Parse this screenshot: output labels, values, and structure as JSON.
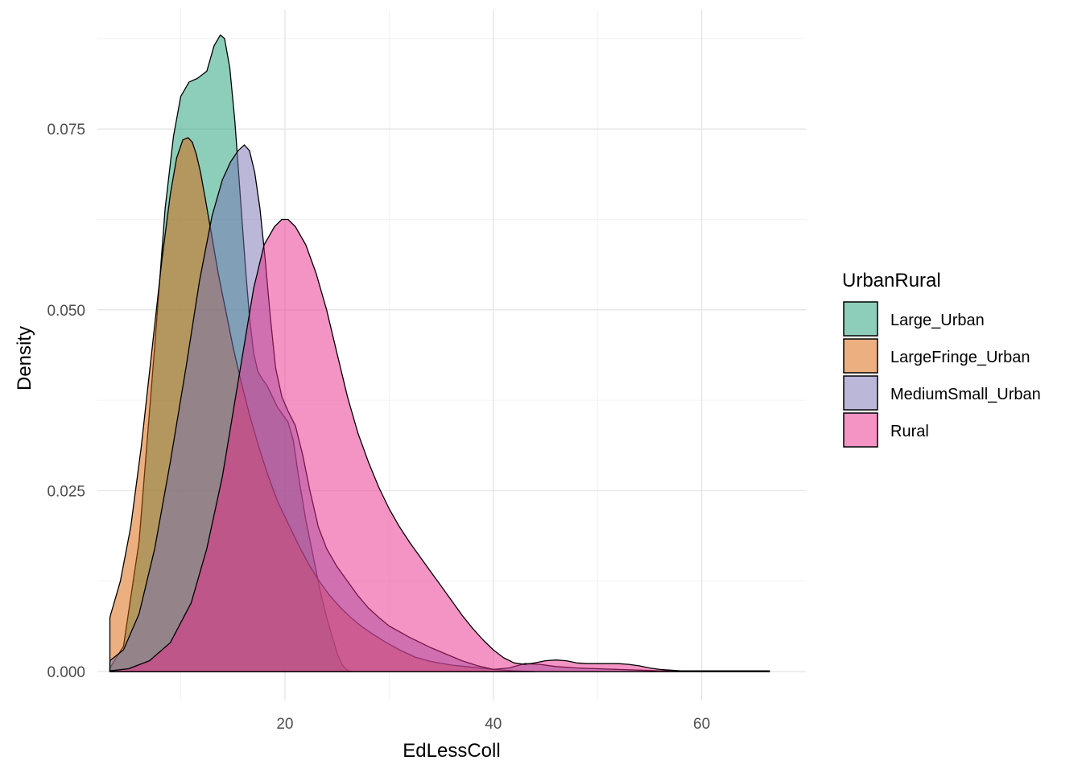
{
  "chart_data": {
    "type": "area",
    "xlabel": "EdLessColl",
    "ylabel": "Density",
    "xlim": [
      2,
      70
    ],
    "ylim": [
      -0.004,
      0.0915
    ],
    "x_ticks": [
      20,
      40,
      60
    ],
    "x_tick_labels": [
      "20",
      "40",
      "60"
    ],
    "y_ticks": [
      0.0,
      0.025,
      0.05,
      0.075
    ],
    "y_tick_labels": [
      "0.000",
      "0.025",
      "0.050",
      "0.075"
    ],
    "grid": true,
    "legend": {
      "title": "UrbanRural",
      "placement": "right"
    },
    "fill_opacity": 0.5,
    "series": [
      {
        "name": "Large_Urban",
        "color": "#1B9E77",
        "x": [
          3.2,
          4.5,
          6,
          7.5,
          8.5,
          9.3,
          10,
          10.8,
          11.6,
          12.5,
          13.2,
          13.8,
          14.2,
          14.7,
          15.2,
          15.7,
          16.2,
          16.6,
          17.0,
          17.4,
          17.8,
          18.3,
          18.8,
          19.3,
          19.8,
          20.3,
          20.8,
          21.3,
          22,
          22.7,
          23.4,
          24,
          24.6,
          25.1,
          25.5,
          25.8,
          26.1,
          26.4
        ],
        "y": [
          0.0005,
          0.0035,
          0.018,
          0.045,
          0.064,
          0.074,
          0.0795,
          0.0815,
          0.082,
          0.083,
          0.0865,
          0.088,
          0.0875,
          0.0835,
          0.076,
          0.066,
          0.056,
          0.049,
          0.044,
          0.0415,
          0.0405,
          0.0395,
          0.038,
          0.0365,
          0.0355,
          0.0345,
          0.032,
          0.027,
          0.021,
          0.016,
          0.011,
          0.0075,
          0.0045,
          0.0022,
          0.001,
          0.0004,
          0.0001,
          0.0
        ]
      },
      {
        "name": "LargeFringe_Urban",
        "color": "#D95F02",
        "x": [
          3.2,
          4.2,
          5.2,
          6.2,
          7.2,
          8.2,
          9.0,
          9.6,
          10.2,
          10.7,
          11.1,
          11.5,
          11.9,
          12.4,
          13.0,
          13.6,
          14.3,
          15.0,
          15.8,
          16.6,
          17.5,
          18.4,
          19.3,
          20.3,
          21.3,
          22.3,
          23.3,
          24.3,
          25.3,
          26.3,
          27.3,
          28.3,
          29.5,
          31,
          32.5,
          34,
          36,
          38,
          40,
          42,
          44
        ],
        "y": [
          0.0075,
          0.0125,
          0.02,
          0.031,
          0.044,
          0.057,
          0.066,
          0.071,
          0.0735,
          0.0738,
          0.0732,
          0.0715,
          0.069,
          0.065,
          0.06,
          0.055,
          0.05,
          0.045,
          0.04,
          0.0355,
          0.031,
          0.027,
          0.0235,
          0.0205,
          0.0175,
          0.0148,
          0.0125,
          0.0105,
          0.0089,
          0.0075,
          0.0063,
          0.0053,
          0.0042,
          0.003,
          0.002,
          0.0014,
          0.0009,
          0.0006,
          0.0003,
          0.0001,
          0.0
        ]
      },
      {
        "name": "MediumSmall_Urban",
        "color": "#7570B3",
        "x": [
          3.2,
          4.5,
          6,
          7.5,
          9,
          10.5,
          11.8,
          13,
          14,
          14.8,
          15.5,
          16.1,
          16.6,
          17.1,
          17.6,
          18.1,
          18.6,
          19.1,
          19.7,
          20.3,
          21,
          21.7,
          22.4,
          23.2,
          24,
          25,
          26,
          27,
          28,
          29,
          30,
          31,
          32,
          33,
          34,
          35.5,
          37,
          38.5,
          40,
          41.5,
          43,
          44.5,
          46,
          48,
          50,
          52,
          54,
          56,
          58,
          60,
          62,
          64,
          66.5
        ],
        "y": [
          0.0015,
          0.003,
          0.008,
          0.017,
          0.029,
          0.042,
          0.054,
          0.063,
          0.068,
          0.0705,
          0.072,
          0.0728,
          0.072,
          0.069,
          0.064,
          0.057,
          0.049,
          0.042,
          0.038,
          0.036,
          0.034,
          0.03,
          0.025,
          0.02,
          0.017,
          0.0145,
          0.0125,
          0.0105,
          0.0088,
          0.0075,
          0.0063,
          0.0055,
          0.0047,
          0.004,
          0.0033,
          0.0024,
          0.0015,
          0.0008,
          0.0003,
          0.0005,
          0.0011,
          0.001,
          0.0007,
          0.0005,
          0.0004,
          0.0003,
          0.0002,
          0.0001,
          0.0001,
          0.0001,
          0.0001,
          0.0001,
          0.0001
        ]
      },
      {
        "name": "Rural",
        "color": "#E7298A",
        "x": [
          3.2,
          5,
          7,
          9,
          11,
          12.5,
          14,
          15.5,
          17,
          18,
          19,
          19.7,
          20.3,
          21,
          22,
          23,
          24,
          25,
          26,
          27,
          28,
          29,
          30,
          31,
          32,
          33,
          34,
          35,
          36,
          37,
          38,
          39,
          40,
          41,
          42,
          43,
          44,
          45,
          46,
          47,
          48,
          49,
          50,
          51,
          52,
          53,
          54,
          55,
          56,
          57,
          58,
          60,
          62,
          64,
          66.5
        ],
        "y": [
          0.0001,
          0.0004,
          0.0015,
          0.004,
          0.0095,
          0.017,
          0.027,
          0.04,
          0.053,
          0.059,
          0.0615,
          0.0625,
          0.0625,
          0.0615,
          0.059,
          0.055,
          0.05,
          0.044,
          0.038,
          0.033,
          0.029,
          0.0255,
          0.0225,
          0.02,
          0.0178,
          0.0158,
          0.0138,
          0.0118,
          0.0098,
          0.0078,
          0.006,
          0.0044,
          0.003,
          0.0019,
          0.0012,
          0.001,
          0.0012,
          0.0015,
          0.0016,
          0.0015,
          0.0012,
          0.0011,
          0.0011,
          0.0011,
          0.0011,
          0.001,
          0.0008,
          0.0005,
          0.0003,
          0.0002,
          0.0001,
          0.0001,
          0.0,
          0.0,
          0.0
        ]
      }
    ]
  }
}
